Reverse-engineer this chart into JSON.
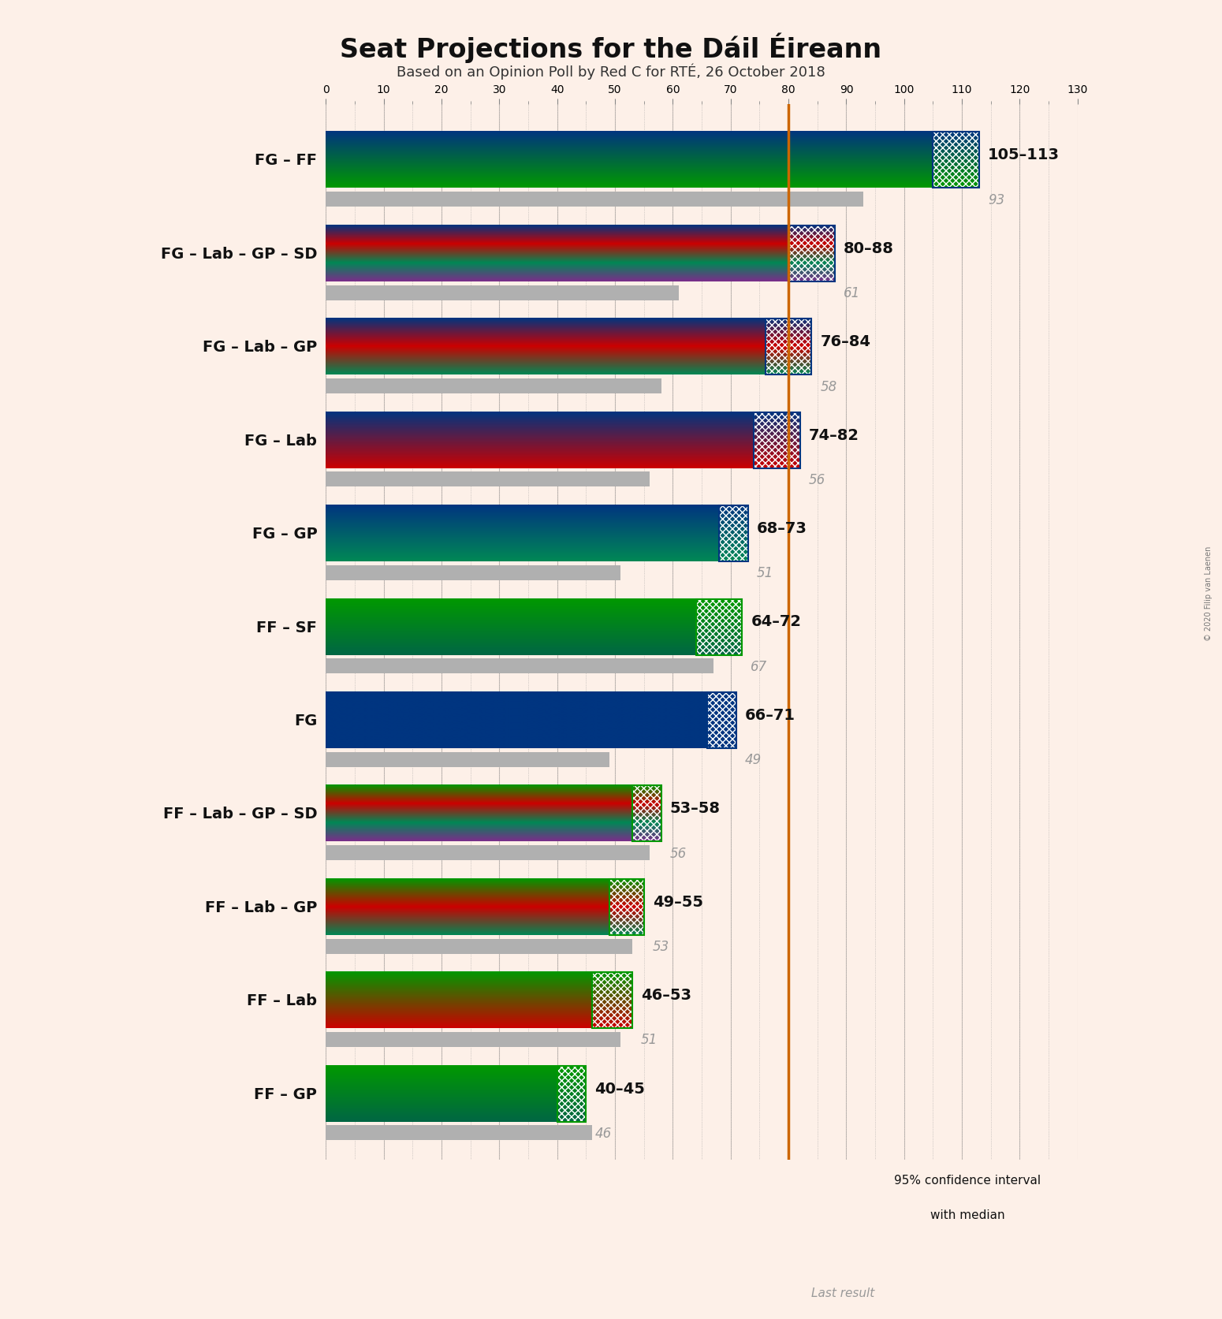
{
  "title": "Seat Projections for the Dáil Éireann",
  "subtitle": "Based on an Opinion Poll by Red C for RTÉ, 26 October 2018",
  "copyright": "© 2020 Filip van Laenen",
  "background_color": "#fdf0e8",
  "majority_line": 80,
  "majority_color": "#cc6600",
  "grid_color": "#888888",
  "coalitions": [
    {
      "label": "FG – FF",
      "range_label": "105–113",
      "last_result": 93,
      "ci_low": 105,
      "ci_high": 113,
      "parties": [
        "FG",
        "FF"
      ],
      "colors": [
        "#003580",
        "#009900"
      ]
    },
    {
      "label": "FG – Lab – GP – SD",
      "range_label": "80–88",
      "last_result": 61,
      "ci_low": 80,
      "ci_high": 88,
      "parties": [
        "FG",
        "Lab",
        "GP",
        "SD"
      ],
      "colors": [
        "#003580",
        "#cc0000",
        "#008855",
        "#7b2d8b"
      ]
    },
    {
      "label": "FG – Lab – GP",
      "range_label": "76–84",
      "last_result": 58,
      "ci_low": 76,
      "ci_high": 84,
      "parties": [
        "FG",
        "Lab",
        "GP"
      ],
      "colors": [
        "#003580",
        "#cc0000",
        "#008855"
      ]
    },
    {
      "label": "FG – Lab",
      "range_label": "74–82",
      "last_result": 56,
      "ci_low": 74,
      "ci_high": 82,
      "parties": [
        "FG",
        "Lab"
      ],
      "colors": [
        "#003580",
        "#cc0000"
      ]
    },
    {
      "label": "FG – GP",
      "range_label": "68–73",
      "last_result": 51,
      "ci_low": 68,
      "ci_high": 73,
      "parties": [
        "FG",
        "GP"
      ],
      "colors": [
        "#003580",
        "#008855"
      ]
    },
    {
      "label": "FF – SF",
      "range_label": "64–72",
      "last_result": 67,
      "ci_low": 64,
      "ci_high": 72,
      "parties": [
        "FF",
        "SF"
      ],
      "colors": [
        "#009900",
        "#006644"
      ]
    },
    {
      "label": "FG",
      "range_label": "66–71",
      "last_result": 49,
      "ci_low": 66,
      "ci_high": 71,
      "parties": [
        "FG"
      ],
      "colors": [
        "#003580"
      ]
    },
    {
      "label": "FF – Lab – GP – SD",
      "range_label": "53–58",
      "last_result": 56,
      "ci_low": 53,
      "ci_high": 58,
      "parties": [
        "FF",
        "Lab",
        "GP",
        "SD"
      ],
      "colors": [
        "#009900",
        "#cc0000",
        "#008855",
        "#7b2d8b"
      ]
    },
    {
      "label": "FF – Lab – GP",
      "range_label": "49–55",
      "last_result": 53,
      "ci_low": 49,
      "ci_high": 55,
      "parties": [
        "FF",
        "Lab",
        "GP"
      ],
      "colors": [
        "#009900",
        "#cc0000",
        "#008855"
      ]
    },
    {
      "label": "FF – Lab",
      "range_label": "46–53",
      "last_result": 51,
      "ci_low": 46,
      "ci_high": 53,
      "parties": [
        "FF",
        "Lab"
      ],
      "colors": [
        "#009900",
        "#cc0000"
      ]
    },
    {
      "label": "FF – GP",
      "range_label": "40–45",
      "last_result": 46,
      "ci_low": 40,
      "ci_high": 45,
      "parties": [
        "FF",
        "GP"
      ],
      "colors": [
        "#009900",
        "#006644"
      ]
    }
  ],
  "xmin": 0,
  "xmax": 130,
  "legend_ci_color": "#1a1a1a",
  "legend_ci_hatch_color": "#444444",
  "legend_gray_color": "#aaaaaa"
}
